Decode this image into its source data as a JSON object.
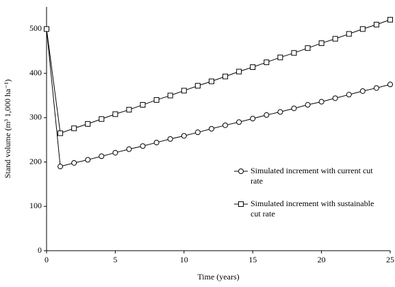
{
  "chart_data": {
    "type": "line",
    "x_label": "Time (years)",
    "y_label": "Stand volume (m³ 1,000 ha⁻¹)",
    "x": [
      0,
      1,
      2,
      3,
      4,
      5,
      6,
      7,
      8,
      9,
      10,
      11,
      12,
      13,
      14,
      15,
      16,
      17,
      18,
      19,
      20,
      21,
      22,
      23,
      24,
      25
    ],
    "series": [
      {
        "name": "Simulated increment with current cut rate",
        "color": "#000000",
        "marker": "circle",
        "values": [
          500,
          190,
          198,
          205,
          213,
          221,
          229,
          236,
          244,
          252,
          259,
          267,
          275,
          283,
          290,
          298,
          306,
          313,
          321,
          329,
          336,
          344,
          352,
          360,
          367,
          375
        ]
      },
      {
        "name": "Simulated increment with sustainable cut rate",
        "color": "#000000",
        "marker": "square",
        "values": [
          500,
          265,
          276,
          286,
          297,
          308,
          318,
          329,
          340,
          350,
          361,
          372,
          382,
          393,
          404,
          414,
          425,
          436,
          446,
          457,
          468,
          478,
          489,
          500,
          510,
          521
        ]
      }
    ],
    "xlim": [
      0,
      25
    ],
    "xticks": [
      0,
      5,
      10,
      15,
      20,
      25
    ],
    "ylim": [
      0,
      550
    ],
    "yticks": [
      0,
      100,
      200,
      300,
      400,
      500
    ],
    "grid": false
  }
}
